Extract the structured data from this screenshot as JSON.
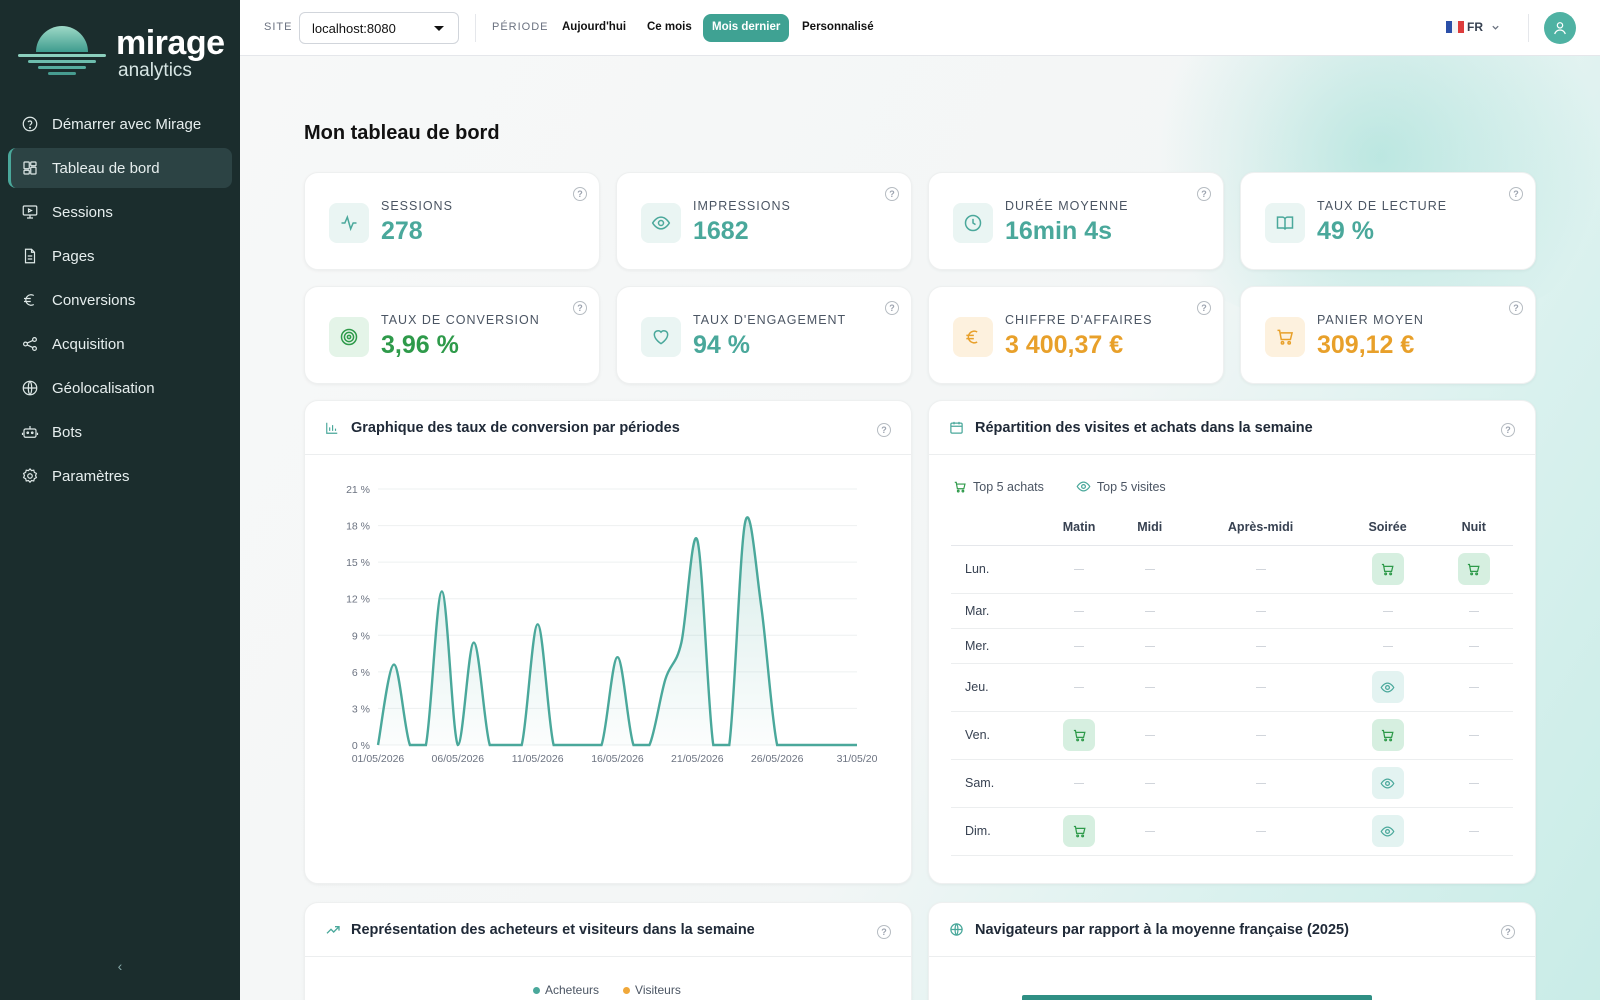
{
  "brand": {
    "name": "mirage",
    "sub": "analytics"
  },
  "sidebar": {
    "items": [
      {
        "label": "Démarrer avec Mirage",
        "icon": "help-circle-icon"
      },
      {
        "label": "Tableau de bord",
        "icon": "dashboard-grid-icon",
        "active": true
      },
      {
        "label": "Sessions",
        "icon": "monitor-icon"
      },
      {
        "label": "Pages",
        "icon": "file-icon"
      },
      {
        "label": "Conversions",
        "icon": "euro-icon"
      },
      {
        "label": "Acquisition",
        "icon": "share-icon"
      },
      {
        "label": "Géolocalisation",
        "icon": "globe-icon"
      },
      {
        "label": "Bots",
        "icon": "bot-icon"
      },
      {
        "label": "Paramètres",
        "icon": "gear-icon"
      }
    ],
    "collapse": "‹"
  },
  "topbar": {
    "site_label": "SITE",
    "site_value": "localhost:8080",
    "period_label": "PÉRIODE",
    "periods": [
      "Aujourd'hui",
      "Ce mois",
      "Mois dernier",
      "Personnalisé"
    ],
    "active_period": "Mois dernier",
    "lang": "FR"
  },
  "page_title": "Mon tableau de bord",
  "kpis": [
    {
      "label": "SESSIONS",
      "value": "278",
      "icon": "activity-icon",
      "color": "#4aa89b"
    },
    {
      "label": "IMPRESSIONS",
      "value": "1682",
      "icon": "eye-icon",
      "color": "#4aa89b"
    },
    {
      "label": "DURÉE MOYENNE",
      "value": "16min 4s",
      "icon": "clock-icon",
      "color": "#4aa89b"
    },
    {
      "label": "TAUX DE LECTURE",
      "value": "49 %",
      "icon": "book-icon",
      "color": "#4aa89b"
    },
    {
      "label": "TAUX DE CONVERSION",
      "value": "3,96 %",
      "icon": "target-icon",
      "color": "#2e9a4a"
    },
    {
      "label": "TAUX D'ENGAGEMENT",
      "value": "94 %",
      "icon": "heart-icon",
      "color": "#4aa89b"
    },
    {
      "label": "CHIFFRE D'AFFAIRES",
      "value": "3 400,37 €",
      "icon": "euro-icon",
      "color": "#e8a02a"
    },
    {
      "label": "PANIER MOYEN",
      "value": "309,12 €",
      "icon": "cart-icon",
      "color": "#e8a02a"
    }
  ],
  "conv_card": {
    "title": "Graphique des taux de conversion par périodes"
  },
  "chart_data": {
    "type": "area",
    "x": [
      "01/05/2026",
      "02/05/2026",
      "03/05/2026",
      "04/05/2026",
      "05/05/2026",
      "06/05/2026",
      "07/05/2026",
      "08/05/2026",
      "09/05/2026",
      "10/05/2026",
      "11/05/2026",
      "12/05/2026",
      "13/05/2026",
      "14/05/2026",
      "15/05/2026",
      "16/05/2026",
      "17/05/2026",
      "18/05/2026",
      "19/05/2026",
      "20/05/2026",
      "21/05/2026",
      "22/05/2026",
      "23/05/2026",
      "24/05/2026",
      "25/05/2026",
      "26/05/2026",
      "27/05/2026",
      "28/05/2026",
      "29/05/2026",
      "30/05/2026",
      "31/05/2026"
    ],
    "series": [
      {
        "values": [
          0,
          6.6,
          0,
          0,
          12.6,
          0,
          8.4,
          0,
          0,
          0,
          9.9,
          0,
          0,
          0,
          0,
          7.2,
          0,
          0,
          5.4,
          8.4,
          16.8,
          0,
          0,
          18.3,
          11.4,
          0,
          0,
          0,
          0,
          0,
          0
        ]
      }
    ],
    "xticks": [
      "01/05/2026",
      "06/05/2026",
      "11/05/2026",
      "16/05/2026",
      "21/05/2026",
      "26/05/2026",
      "31/05/20"
    ],
    "yticks": [
      "21 %",
      "18 %",
      "15 %",
      "12 %",
      "9 %",
      "6 %",
      "3 %",
      "0 %"
    ],
    "ylim": [
      0,
      21
    ],
    "color": "#4aa89b"
  },
  "week_card": {
    "title": "Répartition des visites et achats dans la semaine",
    "legend": [
      "Top 5 achats",
      "Top 5 visites"
    ],
    "columns": [
      "Matin",
      "Midi",
      "Après-midi",
      "Soirée",
      "Nuit"
    ],
    "rows": [
      {
        "day": "Lun.",
        "cells": [
          "",
          "",
          "",
          "buy",
          "buy"
        ]
      },
      {
        "day": "Mar.",
        "cells": [
          "",
          "",
          "",
          "",
          ""
        ]
      },
      {
        "day": "Mer.",
        "cells": [
          "",
          "",
          "",
          "",
          ""
        ]
      },
      {
        "day": "Jeu.",
        "cells": [
          "",
          "",
          "",
          "visit",
          ""
        ]
      },
      {
        "day": "Ven.",
        "cells": [
          "buy",
          "",
          "",
          "buy",
          ""
        ]
      },
      {
        "day": "Sam.",
        "cells": [
          "",
          "",
          "",
          "visit",
          ""
        ]
      },
      {
        "day": "Dim.",
        "cells": [
          "buy",
          "",
          "",
          "visit",
          ""
        ]
      }
    ]
  },
  "buyers_card": {
    "title": "Représentation des acheteurs et visiteurs dans la semaine",
    "legend": [
      "Acheteurs",
      "Visiteurs"
    ],
    "colors": [
      "#4aa89b",
      "#f0a83a"
    ]
  },
  "browsers_card": {
    "title": "Navigateurs par rapport à la moyenne française (2025)"
  }
}
